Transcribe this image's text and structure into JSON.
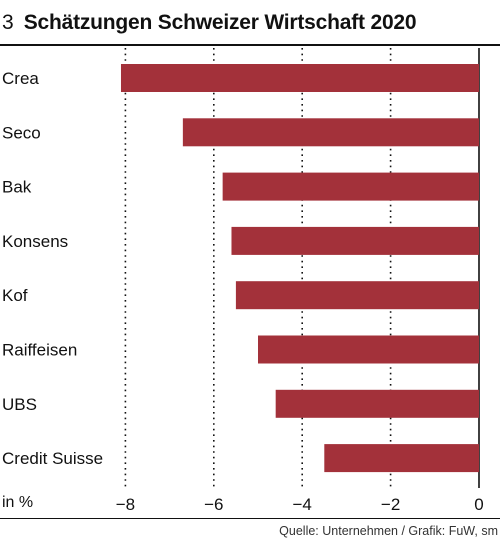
{
  "header": {
    "number": "3",
    "title": "Schätzungen Schweizer Wirtschaft 2020"
  },
  "chart_data": {
    "type": "bar",
    "orientation": "horizontal",
    "categories": [
      "Crea",
      "Seco",
      "Bak",
      "Konsens",
      "Kof",
      "Raiffeisen",
      "UBS",
      "Credit Suisse"
    ],
    "values": [
      -8.1,
      -6.7,
      -5.8,
      -5.6,
      -5.5,
      -5.0,
      -4.6,
      -3.5
    ],
    "xlim": [
      -8.8,
      0
    ],
    "xticks": [
      -8,
      -6,
      -4,
      -2,
      0
    ],
    "xtick_labels": [
      "−8",
      "−6",
      "−4",
      "−2",
      "0"
    ],
    "unit_label": "in %",
    "bar_color": "#a3313a",
    "grid": "vertical dotted"
  },
  "footer": {
    "source": "Quelle: Unternehmen / Grafik: FuW, sm"
  }
}
